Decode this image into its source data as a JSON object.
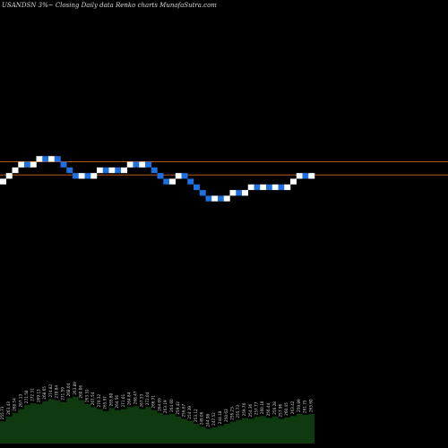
{
  "title": "USANDSN 3%~  Closing Daily data  Renko  charts MunafaSutra.com",
  "colors": {
    "background": "#000000",
    "up_brick": "#ffffff",
    "down_brick": "#1e6fe0",
    "reference_line": "#b05a1a",
    "volume_fill": "#0f3a0f"
  },
  "chart_data": {
    "type": "renko",
    "title": "USANDSN 3%~  Closing Daily data  Renko  charts MunafaSutra.com",
    "brick_size_percent": 3,
    "reference_levels": [
      271.0,
      264.0
    ],
    "ylim": [
      200,
      295
    ],
    "bricks": [
      {
        "dir": "up",
        "close": 262
      },
      {
        "dir": "up",
        "close": 265
      },
      {
        "dir": "up",
        "close": 268
      },
      {
        "dir": "up",
        "close": 271
      },
      {
        "dir": "down",
        "close": 268
      },
      {
        "dir": "up",
        "close": 271
      },
      {
        "dir": "up",
        "close": 274
      },
      {
        "dir": "down",
        "close": 271
      },
      {
        "dir": "up",
        "close": 274
      },
      {
        "dir": "down",
        "close": 271
      },
      {
        "dir": "down",
        "close": 268
      },
      {
        "dir": "down",
        "close": 265
      },
      {
        "dir": "down",
        "close": 262
      },
      {
        "dir": "up",
        "close": 265
      },
      {
        "dir": "down",
        "close": 262
      },
      {
        "dir": "up",
        "close": 265
      },
      {
        "dir": "up",
        "close": 268
      },
      {
        "dir": "down",
        "close": 265
      },
      {
        "dir": "up",
        "close": 268
      },
      {
        "dir": "down",
        "close": 265
      },
      {
        "dir": "up",
        "close": 268
      },
      {
        "dir": "up",
        "close": 271
      },
      {
        "dir": "down",
        "close": 268
      },
      {
        "dir": "up",
        "close": 271
      },
      {
        "dir": "down",
        "close": 268
      },
      {
        "dir": "down",
        "close": 265
      },
      {
        "dir": "down",
        "close": 262
      },
      {
        "dir": "down",
        "close": 259
      },
      {
        "dir": "up",
        "close": 262
      },
      {
        "dir": "up",
        "close": 265
      },
      {
        "dir": "down",
        "close": 262
      },
      {
        "dir": "down",
        "close": 259
      },
      {
        "dir": "down",
        "close": 256
      },
      {
        "dir": "down",
        "close": 253
      },
      {
        "dir": "down",
        "close": 250
      },
      {
        "dir": "up",
        "close": 253
      },
      {
        "dir": "down",
        "close": 250
      },
      {
        "dir": "up",
        "close": 253
      },
      {
        "dir": "up",
        "close": 256
      },
      {
        "dir": "down",
        "close": 253
      },
      {
        "dir": "up",
        "close": 256
      },
      {
        "dir": "up",
        "close": 259
      },
      {
        "dir": "down",
        "close": 256
      },
      {
        "dir": "up",
        "close": 259
      },
      {
        "dir": "down",
        "close": 256
      },
      {
        "dir": "up",
        "close": 259
      },
      {
        "dir": "down",
        "close": 256
      },
      {
        "dir": "up",
        "close": 259
      },
      {
        "dir": "up",
        "close": 262
      },
      {
        "dir": "up",
        "close": 265
      },
      {
        "dir": "down",
        "close": 262
      },
      {
        "dir": "up",
        "close": 265
      }
    ],
    "volume_profile": [
      0.45,
      0.55,
      0.62,
      0.7,
      0.78,
      0.82,
      0.8,
      0.86,
      0.9,
      0.88,
      0.84,
      0.92,
      0.95,
      0.88,
      0.8,
      0.74,
      0.7,
      0.66,
      0.72,
      0.68,
      0.7,
      0.74,
      0.76,
      0.7,
      0.74,
      0.68,
      0.62,
      0.58,
      0.6,
      0.55,
      0.5,
      0.46,
      0.4,
      0.34,
      0.3,
      0.33,
      0.36,
      0.4,
      0.44,
      0.48,
      0.52,
      0.5,
      0.54,
      0.56,
      0.52,
      0.55,
      0.5,
      0.53,
      0.56,
      0.6,
      0.58,
      0.6
    ],
    "tick_labels": [
      "255.73",
      "263.43",
      "268.54",
      "267.13",
      "271.58",
      "272.31",
      "269.13",
      "268.65",
      "274.82",
      "270.84",
      "271.59",
      "268.04",
      "263.89",
      "260.06",
      "263.31",
      "267.54",
      "270.32",
      "265.97",
      "265.80",
      "264.56",
      "271.01",
      "264.84",
      "268.47",
      "267.53",
      "272.04",
      "266.71",
      "264.69",
      "263.19",
      "264.60",
      "259.42",
      "256.67",
      "254.39",
      "253.12",
      "249.06",
      "244.98",
      "247.52",
      "244.18",
      "250.63",
      "256.23",
      "255.73",
      "259.76",
      "254.36",
      "257.77",
      "260.10",
      "256.44",
      "256.28",
      "257.96",
      "260.45",
      "263.42",
      "259.89",
      "261.75",
      "265.60"
    ]
  }
}
